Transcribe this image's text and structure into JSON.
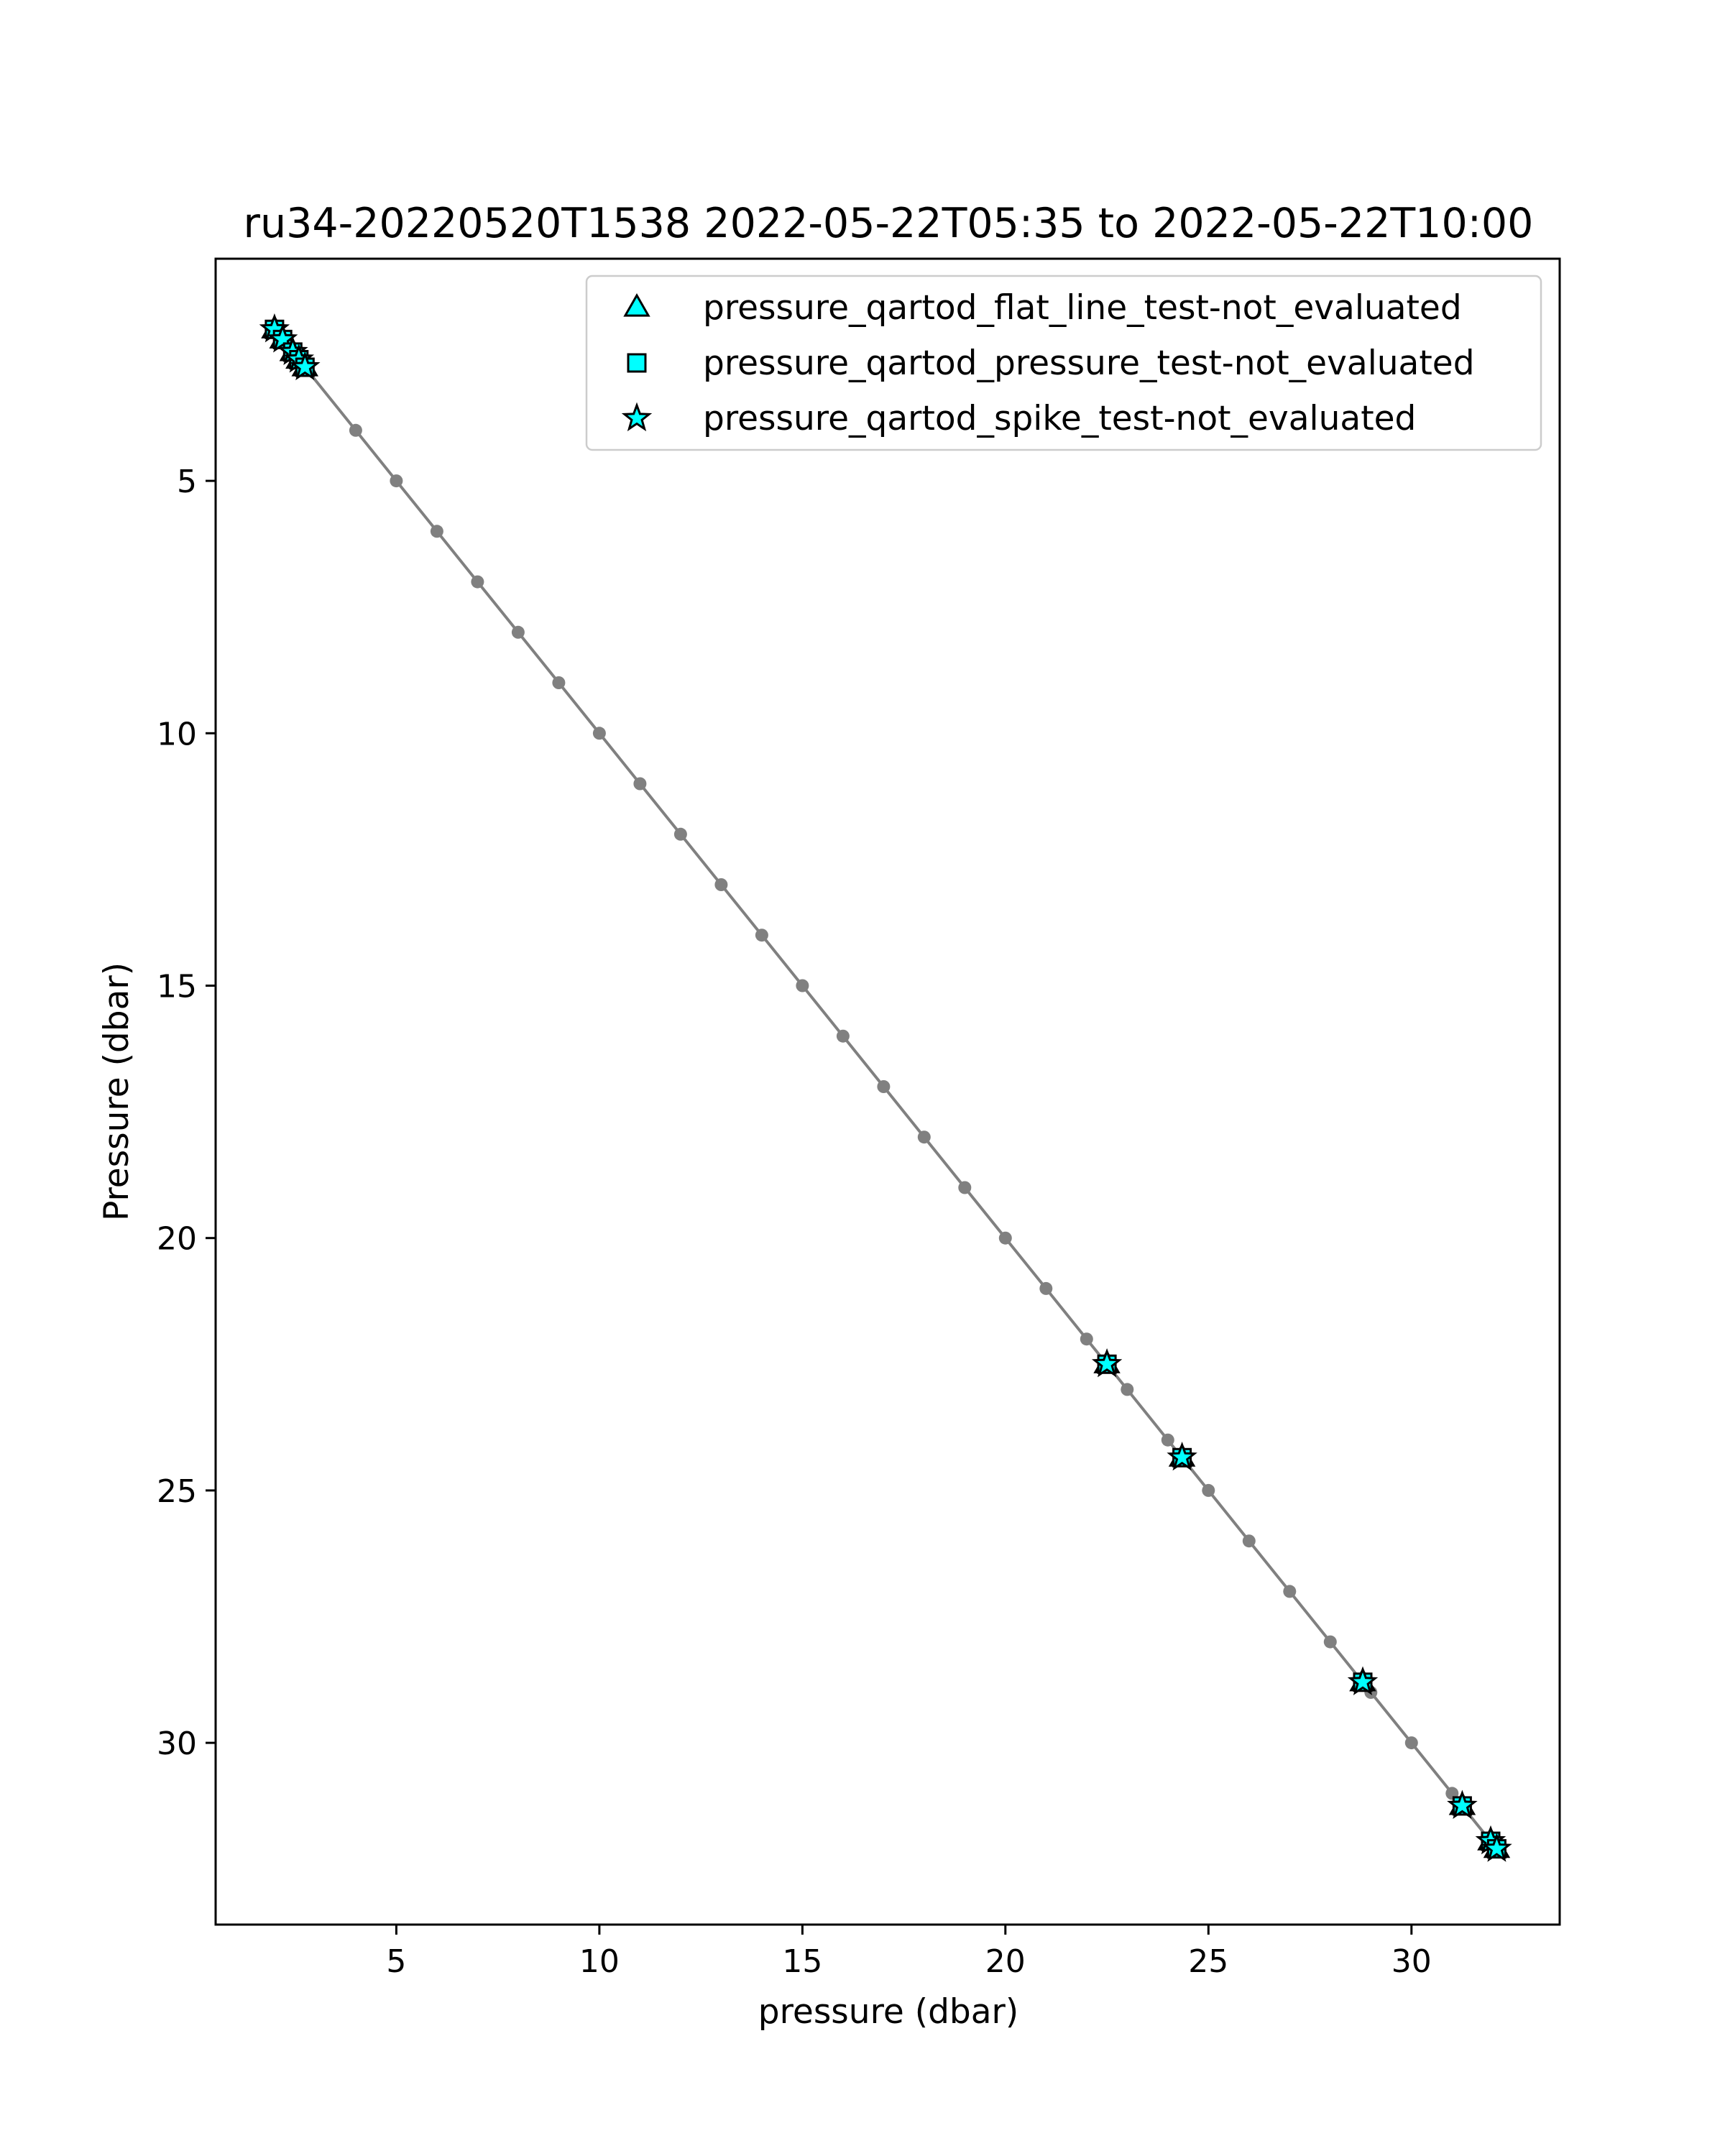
{
  "chart_data": {
    "type": "scatter",
    "title": "ru34-20220520T1538 2022-05-22T05:35 to 2022-05-22T10:00",
    "xlabel": "pressure (dbar)",
    "ylabel": "Pressure (dbar)",
    "xlim": [
      0.55,
      33.65
    ],
    "ylim": [
      33.6,
      0.6
    ],
    "y_inverted": true,
    "grid": false,
    "legend_position": "top-right",
    "x_ticks": [
      5,
      10,
      15,
      20,
      25,
      30
    ],
    "y_ticks": [
      5,
      10,
      15,
      20,
      25,
      30
    ],
    "x_tick_labels": [
      "5",
      "10",
      "15",
      "20",
      "25",
      "30"
    ],
    "y_tick_labels": [
      "5",
      "10",
      "15",
      "20",
      "25",
      "30"
    ],
    "profile": {
      "color": "#808080",
      "x": [
        2.0,
        2.8,
        4.0,
        5.0,
        6.0,
        7.0,
        8.0,
        9.0,
        10.0,
        11.0,
        12.0,
        13.0,
        14.0,
        15.0,
        16.0,
        17.0,
        18.0,
        19.0,
        20.0,
        21.0,
        22.0,
        23.0,
        24.0,
        25.0,
        26.0,
        27.0,
        28.0,
        29.0,
        30.0,
        31.0,
        32.1
      ],
      "y": [
        2.0,
        2.8,
        4.0,
        5.0,
        6.0,
        7.0,
        8.0,
        9.0,
        10.0,
        11.0,
        12.0,
        13.0,
        14.0,
        15.0,
        16.0,
        17.0,
        18.0,
        19.0,
        20.0,
        21.0,
        22.0,
        23.0,
        24.0,
        25.0,
        26.0,
        27.0,
        28.0,
        29.0,
        30.0,
        31.0,
        32.1
      ]
    },
    "flagged_points": {
      "x": [
        2.0,
        2.2,
        2.45,
        2.6,
        2.75,
        22.5,
        24.35,
        28.8,
        31.25,
        31.95,
        32.1
      ],
      "y": [
        2.0,
        2.2,
        2.45,
        2.6,
        2.75,
        22.5,
        24.35,
        28.8,
        31.25,
        31.95,
        32.1
      ]
    },
    "series": [
      {
        "name": "pressure_qartod_flat_line_test-not_evaluated",
        "marker": "triangle",
        "color": "#00ffff"
      },
      {
        "name": "pressure_qartod_pressure_test-not_evaluated",
        "marker": "square",
        "color": "#00ffff"
      },
      {
        "name": "pressure_qartod_spike_test-not_evaluated",
        "marker": "star",
        "color": "#00ffff"
      }
    ]
  }
}
